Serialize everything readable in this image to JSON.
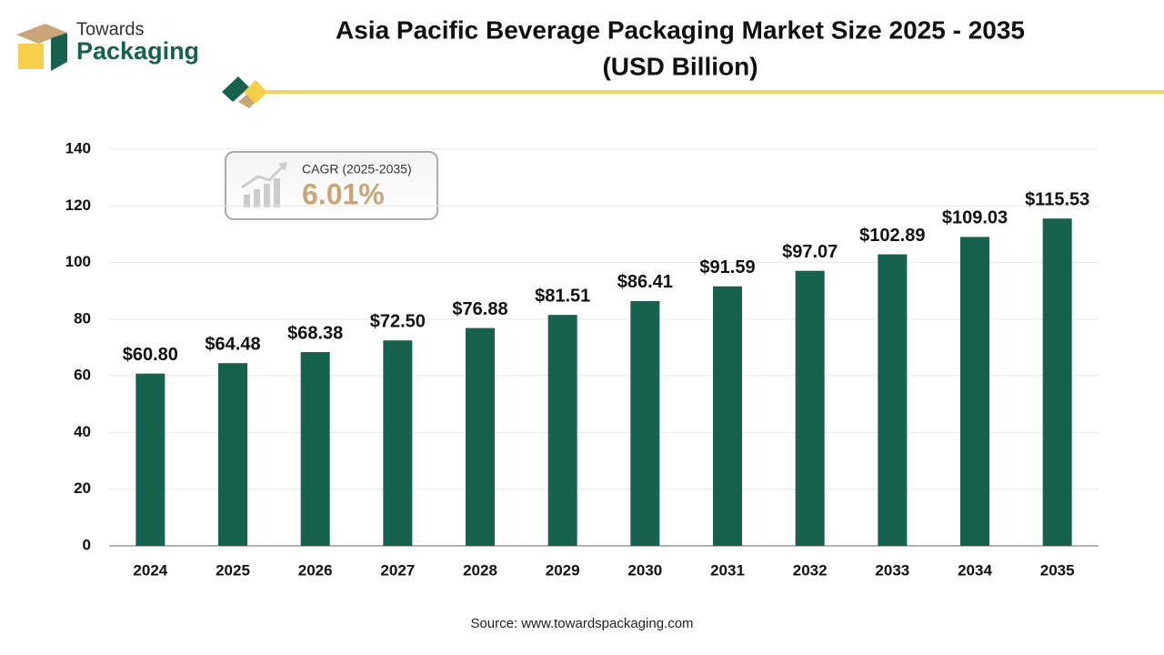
{
  "logo": {
    "line1": "Towards",
    "line2": "Packaging"
  },
  "chart_data": {
    "type": "bar",
    "title": "Asia Pacific Beverage Packaging Market Size 2025 - 2035",
    "subtitle": "(USD Billion)",
    "categories": [
      "2024",
      "2025",
      "2026",
      "2027",
      "2028",
      "2029",
      "2030",
      "2031",
      "2032",
      "2033",
      "2034",
      "2035"
    ],
    "values": [
      60.8,
      64.48,
      68.38,
      72.5,
      76.88,
      81.51,
      86.41,
      91.59,
      97.07,
      102.89,
      109.03,
      115.53
    ],
    "value_labels": [
      "$60.80",
      "$64.48",
      "$68.38",
      "$72.50",
      "$76.88",
      "$81.51",
      "$86.41",
      "$91.59",
      "$97.07",
      "$102.89",
      "$109.03",
      "$115.53"
    ],
    "color": "#17614f",
    "ylim": [
      0,
      140
    ],
    "yticks": [
      0,
      20,
      40,
      60,
      80,
      100,
      120,
      140
    ],
    "grid": true,
    "annotations": [
      "CAGR (2025-2035)",
      "6.01%"
    ],
    "source": "Source: www.towardspackaging.com"
  }
}
